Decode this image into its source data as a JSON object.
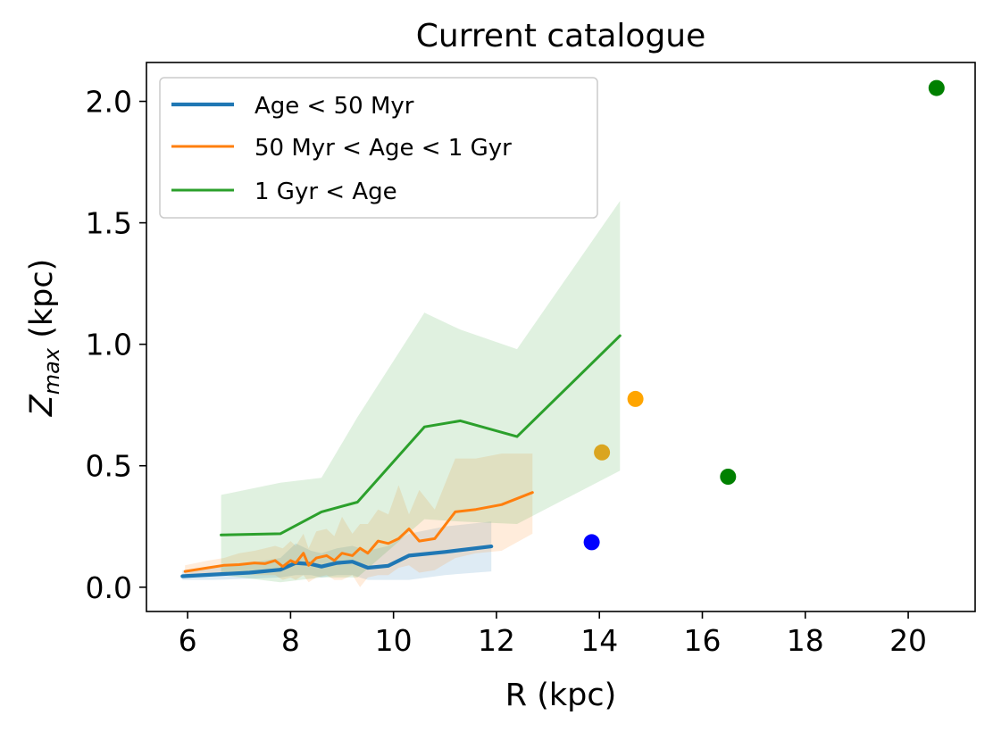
{
  "chart_data": {
    "type": "line",
    "title": "Current catalogue",
    "xlabel": "R (kpc)",
    "ylabel_main": "Z",
    "ylabel_sub": "max",
    "ylabel_unit": " (kpc)",
    "xlim": [
      5.2,
      21.3
    ],
    "ylim": [
      -0.1,
      2.16
    ],
    "xticks": [
      6,
      8,
      10,
      12,
      14,
      16,
      18,
      20
    ],
    "yticks": [
      0.0,
      0.5,
      1.0,
      1.5,
      2.0
    ],
    "xtick_labels": [
      "6",
      "8",
      "10",
      "12",
      "14",
      "16",
      "18",
      "20"
    ],
    "ytick_labels": [
      "0.0",
      "0.5",
      "1.0",
      "1.5",
      "2.0"
    ],
    "legend_position": "upper-left",
    "series": [
      {
        "name": "Age < 50 Myr",
        "color": "#1f77b4",
        "width": "thick",
        "x": [
          5.9,
          6.5,
          7.2,
          7.8,
          8.1,
          8.4,
          8.6,
          8.9,
          9.2,
          9.5,
          9.9,
          10.3,
          11.0,
          11.9
        ],
        "y": [
          0.045,
          0.052,
          0.06,
          0.072,
          0.1,
          0.095,
          0.085,
          0.1,
          0.105,
          0.08,
          0.088,
          0.13,
          0.145,
          0.168
        ],
        "band_upper": [
          0.07,
          0.08,
          0.1,
          0.12,
          0.18,
          0.15,
          0.14,
          0.16,
          0.17,
          0.15,
          0.17,
          0.22,
          0.25,
          0.27
        ],
        "band_lower": [
          0.03,
          0.03,
          0.035,
          0.04,
          0.05,
          0.05,
          0.04,
          0.05,
          0.05,
          0.03,
          0.03,
          0.03,
          0.05,
          0.065
        ]
      },
      {
        "name": "50 Myr < Age < 1 Gyr",
        "color": "#ff7f0e",
        "width": "normal",
        "x": [
          5.95,
          6.4,
          6.7,
          7.0,
          7.3,
          7.5,
          7.7,
          7.85,
          8.0,
          8.1,
          8.25,
          8.35,
          8.5,
          8.7,
          8.85,
          9.0,
          9.2,
          9.35,
          9.5,
          9.7,
          9.9,
          10.1,
          10.3,
          10.5,
          10.8,
          11.2,
          11.6,
          12.1,
          12.7
        ],
        "y": [
          0.065,
          0.08,
          0.09,
          0.093,
          0.1,
          0.097,
          0.11,
          0.085,
          0.11,
          0.1,
          0.14,
          0.09,
          0.12,
          0.13,
          0.11,
          0.14,
          0.13,
          0.16,
          0.14,
          0.19,
          0.18,
          0.2,
          0.24,
          0.19,
          0.2,
          0.31,
          0.32,
          0.34,
          0.39
        ],
        "band_upper": [
          0.09,
          0.11,
          0.12,
          0.14,
          0.15,
          0.16,
          0.17,
          0.16,
          0.19,
          0.17,
          0.22,
          0.16,
          0.23,
          0.24,
          0.21,
          0.29,
          0.22,
          0.26,
          0.26,
          0.32,
          0.3,
          0.42,
          0.3,
          0.4,
          0.32,
          0.53,
          0.53,
          0.55,
          0.55
        ],
        "band_lower": [
          0.04,
          0.05,
          0.06,
          0.06,
          0.05,
          0.05,
          0.05,
          0.03,
          0.04,
          0.03,
          0.05,
          0.02,
          0.04,
          0.05,
          0.03,
          0.03,
          0.05,
          0.0,
          0.04,
          0.05,
          0.05,
          0.08,
          0.09,
          0.06,
          0.07,
          0.12,
          0.14,
          0.15,
          0.22
        ]
      },
      {
        "name": "1 Gyr < Age",
        "color": "#2ca02c",
        "width": "normal",
        "x": [
          6.65,
          7.8,
          8.6,
          9.3,
          10.6,
          11.3,
          12.4,
          14.4
        ],
        "y": [
          0.215,
          0.22,
          0.31,
          0.35,
          0.66,
          0.685,
          0.62,
          1.035
        ],
        "band_upper": [
          0.38,
          0.43,
          0.45,
          0.7,
          1.13,
          1.06,
          0.98,
          1.59
        ],
        "band_lower": [
          0.05,
          0.02,
          0.04,
          0.04,
          0.28,
          0.27,
          0.26,
          0.48
        ]
      }
    ],
    "points": [
      {
        "x": 13.85,
        "y": 0.185,
        "color": "#0000ff"
      },
      {
        "x": 14.05,
        "y": 0.555,
        "color": "#daa520"
      },
      {
        "x": 14.7,
        "y": 0.775,
        "color": "#ffa500"
      },
      {
        "x": 16.5,
        "y": 0.455,
        "color": "#008000"
      },
      {
        "x": 20.55,
        "y": 2.055,
        "color": "#008000"
      }
    ]
  }
}
